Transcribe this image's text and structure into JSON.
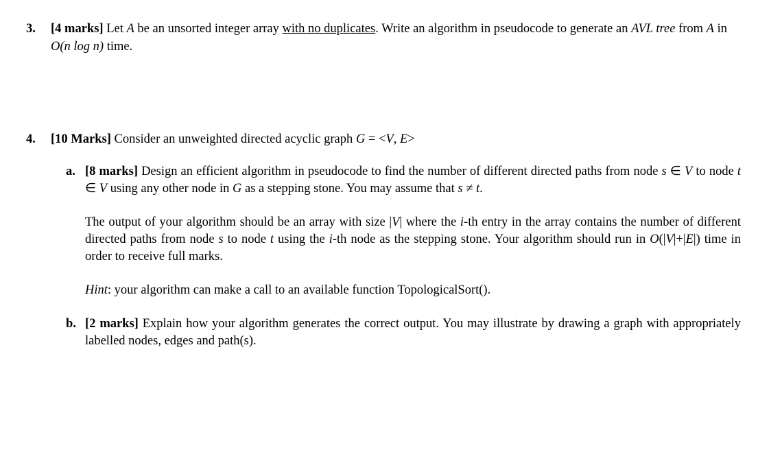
{
  "q3": {
    "number": "3.",
    "marks_label": "[4 marks]",
    "t1": " Let ",
    "A": "A",
    "t2": " be an unsorted integer array ",
    "underlined": "with no duplicates",
    "t3": ". Write an algorithm in pseudocode to generate an ",
    "avl": "AVL tree",
    "t4": " from ",
    "t5": " in ",
    "complexity": "O(n log n)",
    "t6": " time."
  },
  "q4": {
    "number": "4.",
    "marks_label": "[10 Marks]",
    "t1": " Consider an unweighted directed acyclic graph ",
    "g": "G",
    "eq": " = <",
    "v": "V",
    "comma": ", ",
    "e": "E",
    "close": ">",
    "a": {
      "label": "a.",
      "marks": "[8 marks]",
      "p1_t1": " Design an efficient algorithm in pseudocode to find the number of different directed paths from node ",
      "s": "s",
      "el1": " ∈ ",
      "V": "V",
      "p1_t2": "  to node ",
      "t": "t",
      "el2": " ∈ ",
      "p1_t3": "  using any other node in ",
      "G": "G",
      "p1_t4": " as a stepping stone. You may assume that ",
      "neq": " ≠ ",
      "p1_t5": ".",
      "p2_t1": "The output of your algorithm should be an array with size |",
      "p2_t2": "| where the ",
      "ith": "i",
      "p2_t3": "-th entry in the array contains the number of different directed paths from node ",
      "p2_t4": " to node ",
      "p2_t5": " using the ",
      "p2_t6": "-th node as the stepping stone. Your algorithm should run in ",
      "ove": "O",
      "ove2": "(|",
      "ove3": "|+|",
      "E": "E",
      "ove4": "|) time in order to receive full marks.",
      "hint_label": "Hint",
      "hint_text": ": your algorithm can make a call to an available function TopologicalSort()."
    },
    "b": {
      "label": "b.",
      "marks": "[2 marks]",
      "text": " Explain how your algorithm generates the correct output. You may illustrate by drawing a graph with appropriately labelled nodes, edges and path(s)."
    }
  }
}
